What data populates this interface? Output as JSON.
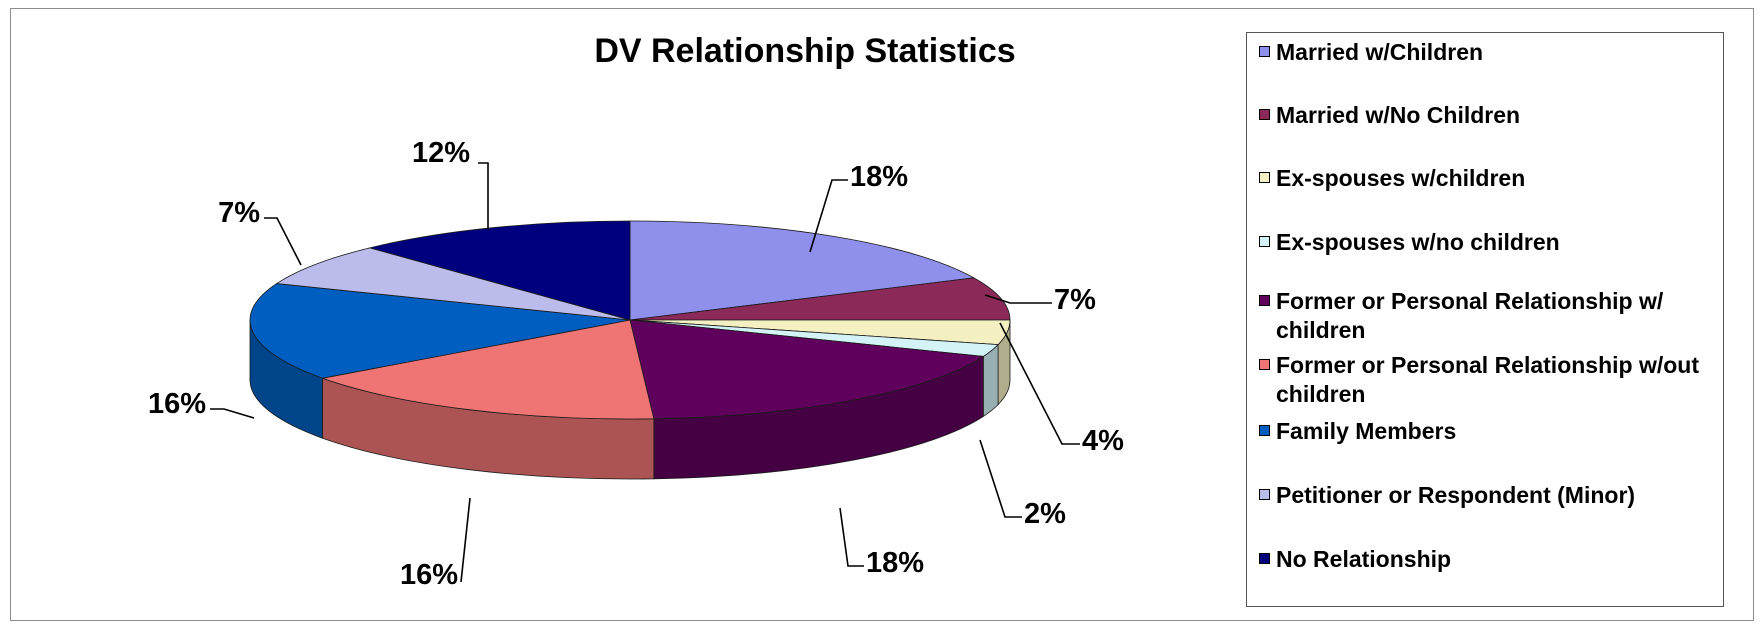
{
  "chart_data": {
    "type": "pie",
    "title": "DV Relationship Statistics",
    "legend_position": "right",
    "three_d": true,
    "slices": [
      {
        "name": "Married w/Children",
        "value": 18,
        "label": "18%",
        "color": "#8f8fec"
      },
      {
        "name": "Married w/No Children",
        "value": 7,
        "label": "7%",
        "color": "#8b2a59"
      },
      {
        "name": "Ex-spouses w/children",
        "value": 4,
        "label": "4%",
        "color": "#f5f0c2"
      },
      {
        "name": "Ex-spouses w/no children",
        "value": 2,
        "label": "2%",
        "color": "#d3f3f6"
      },
      {
        "name": "Former or Personal Relationship w/ children",
        "value": 18,
        "label": "18%",
        "color": "#5f005c"
      },
      {
        "name": "Former or Personal Relationship w/out children",
        "value": 16,
        "label": "16%",
        "color": "#ef7574"
      },
      {
        "name": "Family Members",
        "value": 16,
        "label": "16%",
        "color": "#005ec0"
      },
      {
        "name": "Petitioner or Respondent (Minor)",
        "value": 7,
        "label": "7%",
        "color": "#bbbbec"
      },
      {
        "name": "No Relationship",
        "value": 12,
        "label": "12%",
        "color": "#00007f"
      }
    ]
  },
  "legend": {
    "items": [
      {
        "label": "Married w/Children",
        "color": "#8f8fec"
      },
      {
        "label": "Married w/No Children",
        "color": "#8b2a59"
      },
      {
        "label": "Ex-spouses w/children",
        "color": "#f5f0c2"
      },
      {
        "label": "Ex-spouses w/no children",
        "color": "#d3f3f6"
      },
      {
        "label": "Former or Personal Relationship w/ children",
        "color": "#5f005c"
      },
      {
        "label": "Former or Personal Relationship w/out children",
        "color": "#ef7574"
      },
      {
        "label": "Family Members",
        "color": "#005ec0"
      },
      {
        "label": "Petitioner or Respondent (Minor)",
        "color": "#bbbbec"
      },
      {
        "label": "No Relationship",
        "color": "#00007f"
      }
    ]
  }
}
